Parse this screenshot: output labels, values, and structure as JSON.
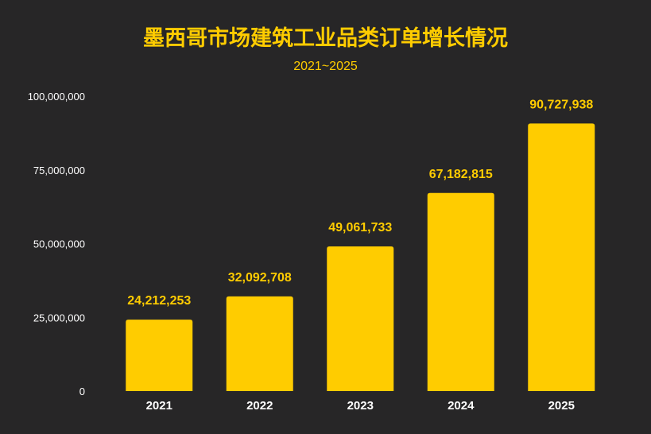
{
  "chart_data": {
    "type": "bar",
    "title": "墨西哥市场建筑工业品类订单增长情况",
    "subtitle": "2021~2025",
    "categories": [
      "2021",
      "2022",
      "2023",
      "2024",
      "2025"
    ],
    "values": [
      24212253,
      32092708,
      49061733,
      67182815,
      90727938
    ],
    "data_labels": [
      "24,212,253",
      "32,092,708",
      "49,061,733",
      "67,182,815",
      "90,727,938"
    ],
    "ylim": [
      0,
      100000000
    ],
    "yticks": [
      0,
      25000000,
      50000000,
      75000000,
      100000000
    ],
    "ytick_labels": [
      "0",
      "25,000,000",
      "50,000,000",
      "75,000,000",
      "100,000,000"
    ],
    "grid": false,
    "xlabel": "",
    "ylabel": "",
    "colors": {
      "bar": "#ffcc00",
      "background": "#272627",
      "title": "#ffcc00",
      "axis_text": "#ffffff"
    }
  }
}
